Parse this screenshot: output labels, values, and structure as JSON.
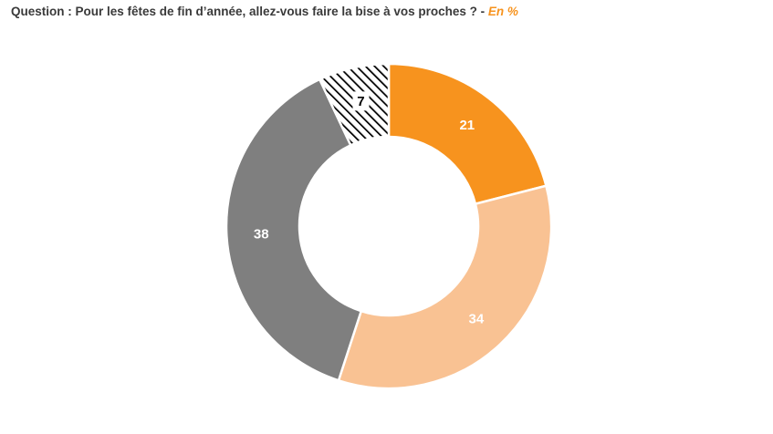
{
  "header": {
    "question": "Question : Pour les fêtes de fin d’année, allez-vous faire la bise à vos proches ?",
    "separator": " - ",
    "unit": "En %"
  },
  "colors": {
    "oui_tous": "#f7931e",
    "oui_certains": "#f9c293",
    "non": "#7f7f7f",
    "hatch": "#000000",
    "label_light": "#ffffff",
    "label_dark": "#000000"
  },
  "chart_data": {
    "type": "pie",
    "donut": true,
    "values": [
      21,
      34,
      38,
      7
    ],
    "labels": [
      "21",
      "34",
      "38",
      "7"
    ],
    "legend_position": "bottom"
  }
}
